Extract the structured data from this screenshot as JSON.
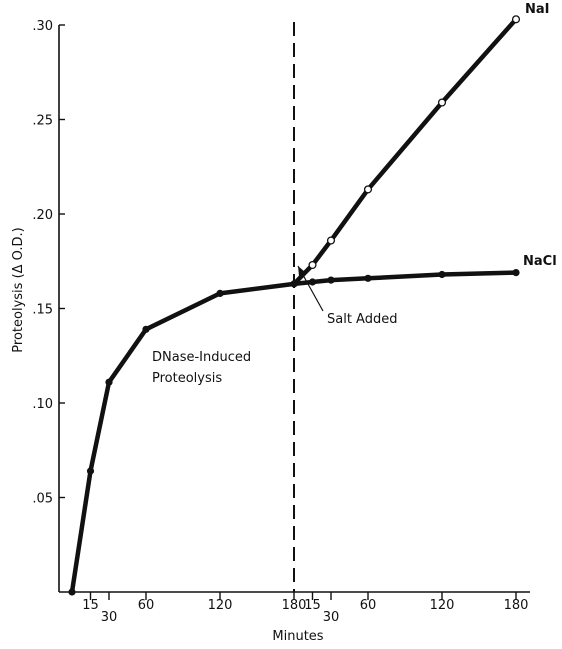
{
  "chart_data": {
    "type": "line",
    "xlabel": "Minutes",
    "ylabel": "Proteolysis (Δ O.D.)",
    "ylim": [
      0,
      0.3
    ],
    "y_ticks": [
      ".05",
      ".10",
      ".15",
      ".20",
      ".25",
      ".30"
    ],
    "x_phases": [
      {
        "name": "before salt",
        "x_ticks": [
          "15",
          "30",
          "60",
          "120",
          "180"
        ],
        "xlim": [
          0,
          180
        ]
      },
      {
        "name": "after salt",
        "x_ticks": [
          "15",
          "30",
          "60",
          "120",
          "180"
        ],
        "xlim": [
          0,
          180
        ]
      }
    ],
    "series": [
      {
        "name": "",
        "phase": "before salt",
        "marker": "filled",
        "points": [
          [
            0,
            0.0
          ],
          [
            15,
            0.064
          ],
          [
            30,
            0.111
          ],
          [
            60,
            0.139
          ],
          [
            120,
            0.158
          ],
          [
            180,
            0.163
          ]
        ]
      },
      {
        "name": "NaI",
        "phase": "after salt",
        "marker": "open",
        "points": [
          [
            0,
            0.163
          ],
          [
            15,
            0.173
          ],
          [
            30,
            0.186
          ],
          [
            60,
            0.213
          ],
          [
            120,
            0.259
          ],
          [
            180,
            0.303
          ]
        ]
      },
      {
        "name": "NaCl",
        "phase": "after salt",
        "marker": "filled",
        "points": [
          [
            0,
            0.163
          ],
          [
            15,
            0.164
          ],
          [
            30,
            0.165
          ],
          [
            60,
            0.166
          ],
          [
            120,
            0.168
          ],
          [
            180,
            0.169
          ]
        ]
      }
    ],
    "annotations": {
      "salt_added": "Salt Added",
      "dnase": [
        "DNase-Induced",
        "Proteolysis"
      ]
    },
    "grid": false,
    "legend": "labels at line ends"
  }
}
